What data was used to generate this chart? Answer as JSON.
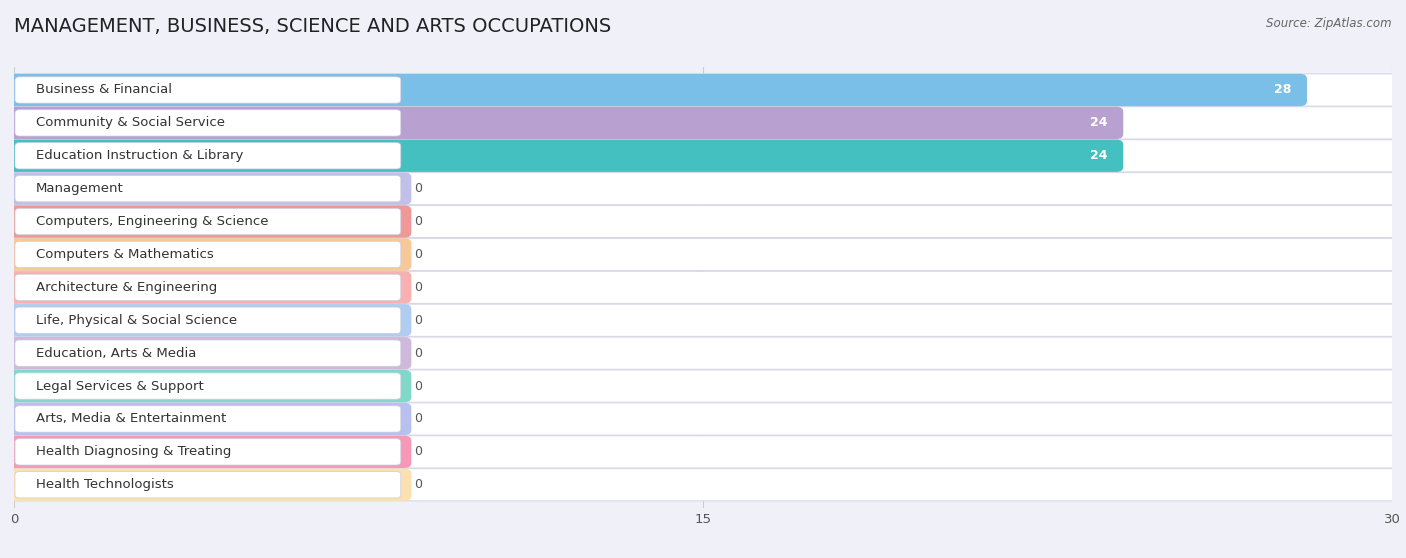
{
  "title": "MANAGEMENT, BUSINESS, SCIENCE AND ARTS OCCUPATIONS",
  "source": "Source: ZipAtlas.com",
  "categories": [
    "Business & Financial",
    "Community & Social Service",
    "Education Instruction & Library",
    "Management",
    "Computers, Engineering & Science",
    "Computers & Mathematics",
    "Architecture & Engineering",
    "Life, Physical & Social Science",
    "Education, Arts & Media",
    "Legal Services & Support",
    "Arts, Media & Entertainment",
    "Health Diagnosing & Treating",
    "Health Technologists"
  ],
  "values": [
    28,
    24,
    24,
    0,
    0,
    0,
    0,
    0,
    0,
    0,
    0,
    0,
    0
  ],
  "bar_colors": [
    "#7abfe8",
    "#b8a0d0",
    "#45c0c0",
    "#c0c0e8",
    "#f09898",
    "#f8c898",
    "#f8b0b0",
    "#b0ccf0",
    "#d0b8dc",
    "#80d8c8",
    "#b8c0f0",
    "#f898b8",
    "#fce0b0"
  ],
  "xlim": [
    0,
    30
  ],
  "xticks": [
    0,
    15,
    30
  ],
  "bg_color": "#f0f0f8",
  "bar_bg_color": "#ffffff",
  "title_fontsize": 14,
  "label_fontsize": 9.5,
  "value_fontsize": 9
}
